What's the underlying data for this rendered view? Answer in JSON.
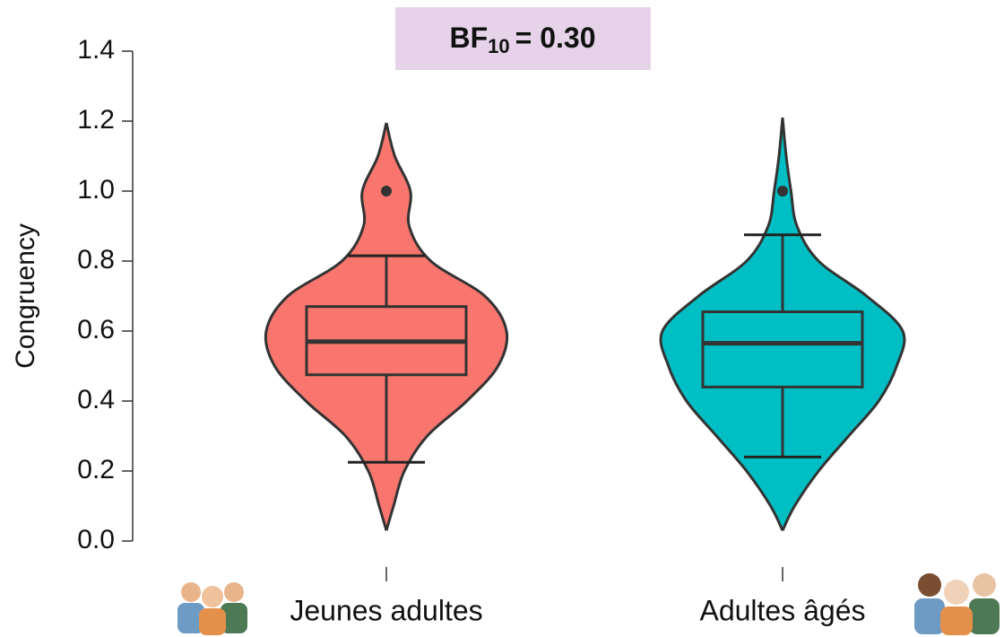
{
  "chart_data": {
    "type": "violin",
    "annotation": {
      "text": "BF",
      "subscript": "10",
      "suffix": "= 0.30"
    },
    "ylabel": "Congruency",
    "categories": [
      "Jeunes adultes",
      "Adultes âgés"
    ],
    "ylim": [
      0,
      1.4
    ],
    "yticks": [
      {
        "value": 0,
        "label": "0.0"
      },
      0.2,
      0.4,
      0.6,
      0.8,
      {
        "value": 1,
        "label": "1.0"
      },
      1.2,
      1.4
    ],
    "groups": [
      {
        "color": "#f8766d",
        "whisker_low": 0.225,
        "q1": 0.475,
        "median": 0.57,
        "q3": 0.67,
        "whisker_high": 0.815,
        "outliers": [
          1.0
        ],
        "violin_y": [
          0.03,
          0.1,
          0.2,
          0.3,
          0.4,
          0.5,
          0.6,
          0.7,
          0.8,
          0.9,
          1.0,
          1.1,
          1.195
        ],
        "violin_density": [
          0,
          0.06,
          0.15,
          0.34,
          0.67,
          0.93,
          1.0,
          0.82,
          0.37,
          0.19,
          0.2,
          0.07,
          0
        ]
      },
      {
        "color": "#00bfc4",
        "whisker_low": 0.24,
        "q1": 0.44,
        "median": 0.565,
        "q3": 0.655,
        "whisker_high": 0.875,
        "outliers": [
          1.0
        ],
        "violin_y": [
          0.03,
          0.1,
          0.2,
          0.3,
          0.4,
          0.5,
          0.6,
          0.7,
          0.8,
          0.9,
          1.0,
          1.1,
          1.21
        ],
        "violin_density": [
          0,
          0.1,
          0.3,
          0.55,
          0.8,
          0.95,
          1.0,
          0.7,
          0.3,
          0.12,
          0.07,
          0.03,
          0
        ]
      }
    ]
  }
}
